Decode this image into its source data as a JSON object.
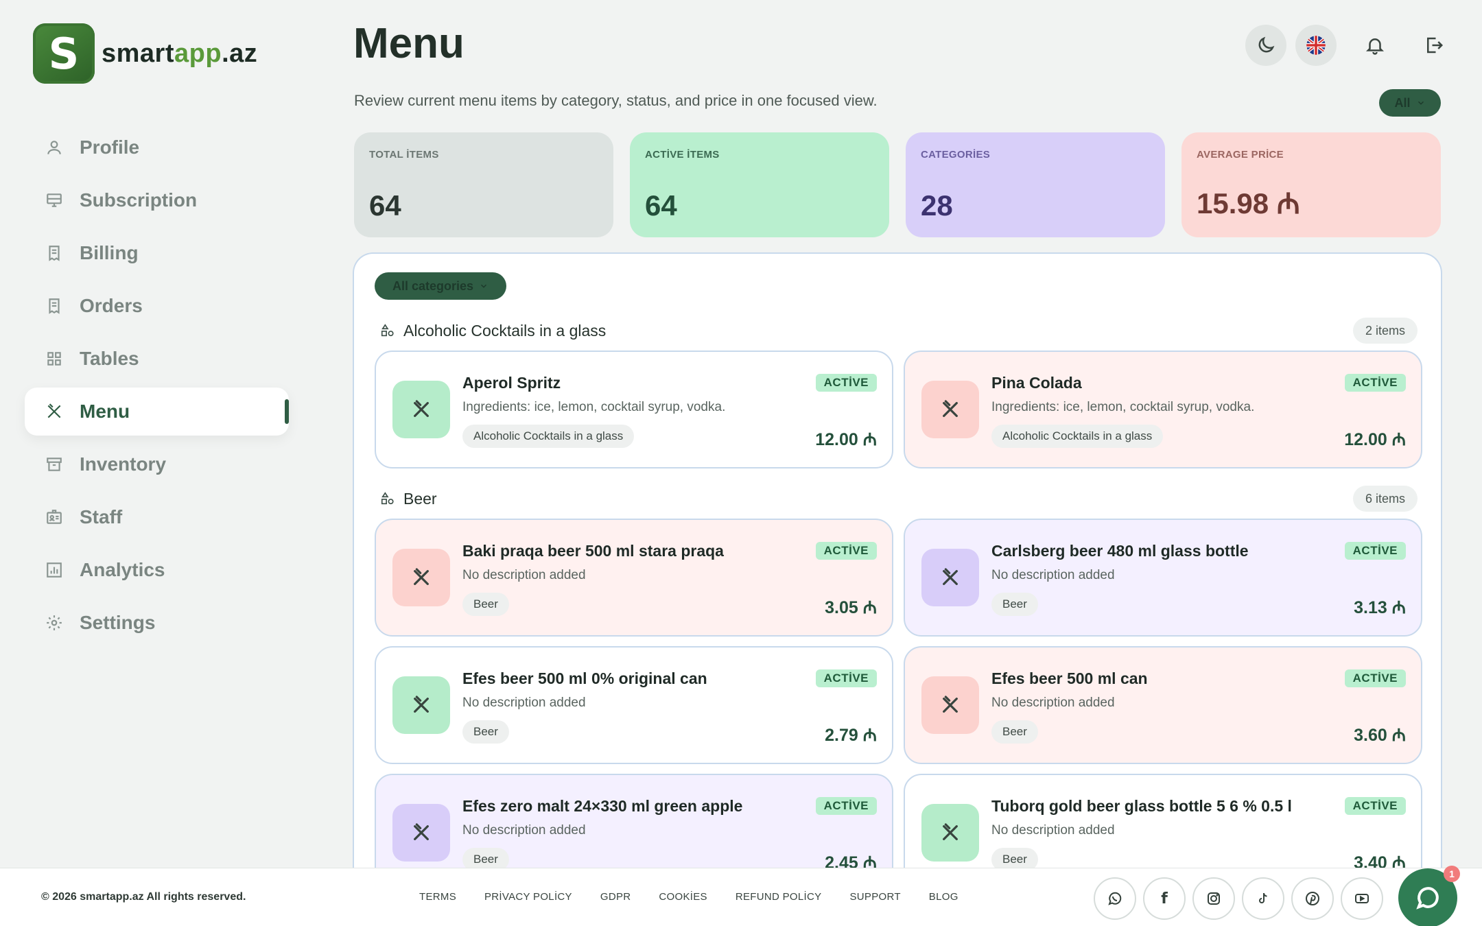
{
  "brand": {
    "part1": "smart",
    "part2": "app",
    "part3": ".az",
    "mark": "S"
  },
  "sidebar": {
    "items": [
      {
        "label": "Profile",
        "icon": "user-icon"
      },
      {
        "label": "Subscription",
        "icon": "monitor-icon"
      },
      {
        "label": "Billing",
        "icon": "receipt-icon"
      },
      {
        "label": "Orders",
        "icon": "receipt-icon"
      },
      {
        "label": "Tables",
        "icon": "grid-icon"
      },
      {
        "label": "Menu",
        "icon": "utensils-icon",
        "active": true
      },
      {
        "label": "Inventory",
        "icon": "archive-icon"
      },
      {
        "label": "Staff",
        "icon": "id-card-icon"
      },
      {
        "label": "Analytics",
        "icon": "chart-icon"
      },
      {
        "label": "Settings",
        "icon": "gear-icon"
      }
    ]
  },
  "header": {
    "title": "Menu",
    "subtitle": "Review current menu items by category, status, and price in one focused view.",
    "filter_label": "All"
  },
  "stats": [
    {
      "label": "TOTAL İTEMS",
      "value": "64"
    },
    {
      "label": "ACTİVE İTEMS",
      "value": "64"
    },
    {
      "label": "CATEGORİES",
      "value": "28"
    },
    {
      "label": "AVERAGE PRİCE",
      "value": "15.98 ₼"
    }
  ],
  "menu": {
    "category_filter": "All categories",
    "groups": [
      {
        "name": "Alcoholic Cocktails in a glass",
        "count": "2 items",
        "items": [
          {
            "name": "Aperol Spritz",
            "desc": "Ingredients: ice, lemon, cocktail syrup, vodka.",
            "tag": "Alcoholic Cocktails in a glass",
            "status": "ACTİVE",
            "price": "12.00 ₼"
          },
          {
            "name": "Pina Colada",
            "desc": "Ingredients: ice, lemon, cocktail syrup, vodka.",
            "tag": "Alcoholic Cocktails in a glass",
            "status": "ACTİVE",
            "price": "12.00 ₼"
          }
        ]
      },
      {
        "name": "Beer",
        "count": "6 items",
        "items": [
          {
            "name": "Baki praqa beer 500 ml stara praqa",
            "desc": "No description added",
            "tag": "Beer",
            "status": "ACTİVE",
            "price": "3.05 ₼"
          },
          {
            "name": "Carlsberg beer 480 ml glass bottle",
            "desc": "No description added",
            "tag": "Beer",
            "status": "ACTİVE",
            "price": "3.13 ₼"
          },
          {
            "name": "Efes beer 500 ml 0% original can",
            "desc": "No description added",
            "tag": "Beer",
            "status": "ACTİVE",
            "price": "2.79 ₼"
          },
          {
            "name": "Efes beer 500 ml can",
            "desc": "No description added",
            "tag": "Beer",
            "status": "ACTİVE",
            "price": "3.60 ₼"
          },
          {
            "name": "Efes zero malt 24×330 ml green apple",
            "desc": "No description added",
            "tag": "Beer",
            "status": "ACTİVE",
            "price": "2.45 ₼"
          },
          {
            "name": "Tuborq gold beer glass bottle 5 6 % 0.5 l",
            "desc": "No description added",
            "tag": "Beer",
            "status": "ACTİVE",
            "price": "3.40 ₼"
          }
        ]
      }
    ]
  },
  "footer": {
    "copyright": "© 2026 smartapp.az All rights reserved.",
    "links": [
      "TERMS",
      "PRİVACY POLİCY",
      "GDPR",
      "COOKİES",
      "REFUND POLİCY",
      "SUPPORT",
      "BLOG"
    ],
    "socials": [
      "whatsapp-icon",
      "facebook-icon",
      "instagram-icon",
      "tiktok-icon",
      "pinterest-icon",
      "youtube-icon"
    ],
    "chat_badge": "1"
  },
  "colors": {
    "accent": "#2f5d44",
    "active_badge": "#b9efcf",
    "total_card": "#dde3e1",
    "active_card": "#b9efcf",
    "category_card": "#d8cff9",
    "price_card": "#fcd9d6"
  }
}
